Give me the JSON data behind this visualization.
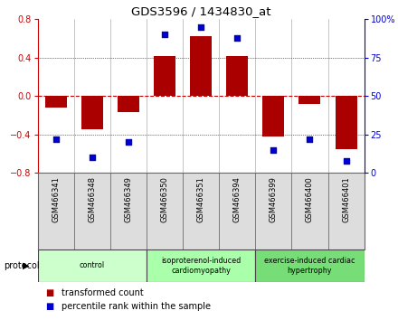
{
  "title": "GDS3596 / 1434830_at",
  "samples": [
    "GSM466341",
    "GSM466348",
    "GSM466349",
    "GSM466350",
    "GSM466351",
    "GSM466394",
    "GSM466399",
    "GSM466400",
    "GSM466401"
  ],
  "bar_values": [
    -0.12,
    -0.35,
    -0.17,
    0.42,
    0.62,
    0.42,
    -0.42,
    -0.08,
    -0.55
  ],
  "dot_values": [
    22,
    10,
    20,
    90,
    95,
    88,
    15,
    22,
    8
  ],
  "ylim_left": [
    -0.8,
    0.8
  ],
  "ylim_right": [
    0,
    100
  ],
  "yticks_left": [
    -0.8,
    -0.4,
    0.0,
    0.4,
    0.8
  ],
  "yticks_right": [
    0,
    25,
    50,
    75,
    100
  ],
  "ytick_labels_right": [
    "0",
    "25",
    "50",
    "75",
    "100%"
  ],
  "bar_color": "#aa0000",
  "dot_color": "#0000cc",
  "zero_line_color": "#cc0000",
  "bg_color": "#ffffff",
  "protocol_groups": [
    {
      "label": "control",
      "start": 0,
      "end": 3,
      "color": "#ccffcc"
    },
    {
      "label": "isoproterenol-induced\ncardiomyopathy",
      "start": 3,
      "end": 6,
      "color": "#aaffaa"
    },
    {
      "label": "exercise-induced cardiac\nhypertrophy",
      "start": 6,
      "end": 9,
      "color": "#77dd77"
    }
  ],
  "legend_bar_label": "transformed count",
  "legend_dot_label": "percentile rank within the sample",
  "protocol_label": "protocol"
}
